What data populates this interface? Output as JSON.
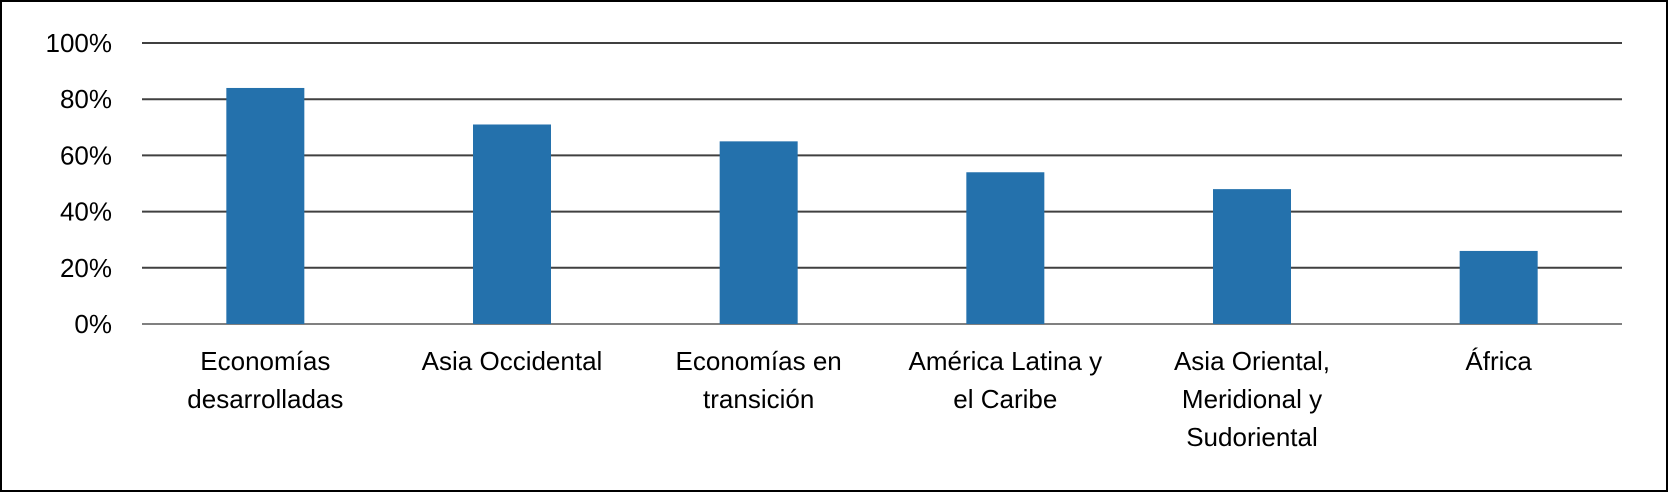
{
  "chart_data": {
    "type": "bar",
    "categories": [
      [
        "Economías",
        "desarrolladas"
      ],
      [
        "Asia Occidental"
      ],
      [
        "Economías en",
        "transición"
      ],
      [
        "América Latina y",
        "el Caribe"
      ],
      [
        "Asia Oriental,",
        "Meridional y",
        "Sudoriental"
      ],
      [
        "África"
      ]
    ],
    "values": [
      84,
      71,
      65,
      54,
      48,
      26
    ],
    "title": "",
    "xlabel": "",
    "ylabel": "",
    "ylim": [
      0,
      100
    ],
    "yticks": [
      "0%",
      "20%",
      "40%",
      "60%",
      "80%",
      "100%"
    ],
    "grid": true,
    "legend": "none",
    "colors": {
      "bar": "#2471AC",
      "grid": "#404040",
      "text": "#000000"
    }
  }
}
